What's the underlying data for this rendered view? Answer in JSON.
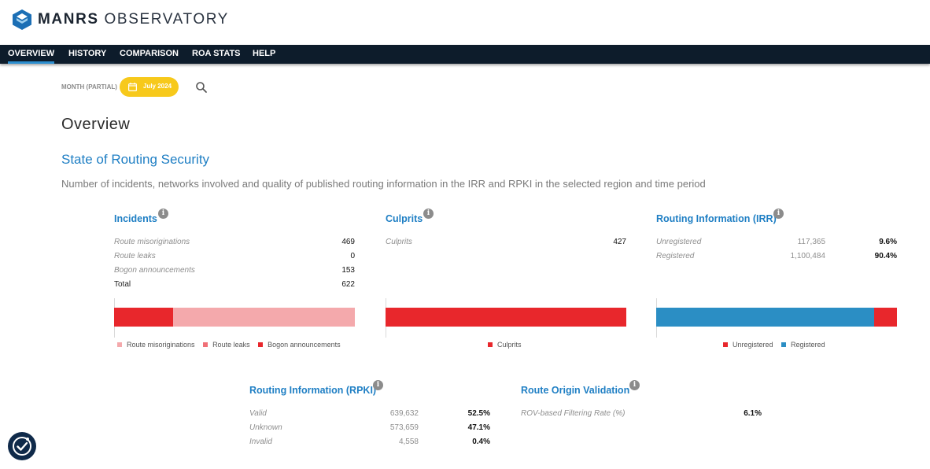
{
  "header": {
    "brand_bold": "MANRS",
    "brand_light": " OBSERVATORY"
  },
  "nav": {
    "items": [
      {
        "label": "OVERVIEW"
      },
      {
        "label": "HISTORY"
      },
      {
        "label": "COMPARISON"
      },
      {
        "label": "ROA STATS"
      },
      {
        "label": "HELP"
      }
    ],
    "active": "OVERVIEW"
  },
  "filter": {
    "label": "MONTH (PARTIAL)",
    "month": "July 2024",
    "icons": [
      "calendar-icon",
      "search-icon"
    ]
  },
  "page_title": "Overview",
  "section": {
    "title": "State of Routing Security",
    "description": "Number of incidents, networks involved and quality of published routing information in the IRR and RPKI in the selected region and time period"
  },
  "colors": {
    "accent": "#1f7fc4",
    "red": "#e8272c",
    "pink": "#f4a9ac",
    "blue": "#2b8ec4",
    "yellow": "#f7c91b",
    "nav_bg": "#0d1c2b"
  },
  "incidents": {
    "title": "Incidents",
    "rows": [
      {
        "label": "Route misoriginations",
        "value": "469"
      },
      {
        "label": "Route leaks",
        "value": "0"
      },
      {
        "label": "Bogon announcements",
        "value": "153"
      },
      {
        "label": "Total",
        "value": "622"
      }
    ],
    "legend": [
      "Route misoriginations",
      "Route leaks",
      "Bogon announcements"
    ]
  },
  "culprits": {
    "title": "Culprits",
    "rows": [
      {
        "label": "Culprits",
        "value": "427"
      }
    ],
    "legend": [
      "Culprits"
    ]
  },
  "irr": {
    "title": "Routing Information (IRR)",
    "rows": [
      {
        "label": "Unregistered",
        "count": "117,365",
        "pct": "9.6%"
      },
      {
        "label": "Registered",
        "count": "1,100,484",
        "pct": "90.4%"
      }
    ],
    "legend": [
      "Unregistered",
      "Registered"
    ]
  },
  "rpki": {
    "title": "Routing Information (RPKI)",
    "rows": [
      {
        "label": "Valid",
        "count": "639,632",
        "pct": "52.5%"
      },
      {
        "label": "Unknown",
        "count": "573,659",
        "pct": "47.1%"
      },
      {
        "label": "Invalid",
        "count": "4,558",
        "pct": "0.4%"
      }
    ]
  },
  "rov": {
    "title": "Route Origin Validation",
    "rows": [
      {
        "label": "ROV-based Filtering Rate (%)",
        "pct": "6.1%"
      }
    ]
  },
  "chart_data": [
    {
      "type": "bar",
      "orientation": "horizontal",
      "stacked": true,
      "categories": [
        "Incidents"
      ],
      "series": [
        {
          "name": "Bogon announcements",
          "values": [
            153
          ]
        },
        {
          "name": "Route leaks",
          "values": [
            0
          ]
        },
        {
          "name": "Route misoriginations",
          "values": [
            469
          ]
        }
      ]
    },
    {
      "type": "bar",
      "orientation": "horizontal",
      "stacked": true,
      "categories": [
        "Culprits"
      ],
      "series": [
        {
          "name": "Culprits",
          "values": [
            427
          ]
        }
      ]
    },
    {
      "type": "bar",
      "orientation": "horizontal",
      "stacked": true,
      "categories": [
        "Routing Information (IRR)"
      ],
      "series": [
        {
          "name": "Registered",
          "values": [
            1100484
          ]
        },
        {
          "name": "Unregistered",
          "values": [
            117365
          ]
        }
      ]
    }
  ]
}
